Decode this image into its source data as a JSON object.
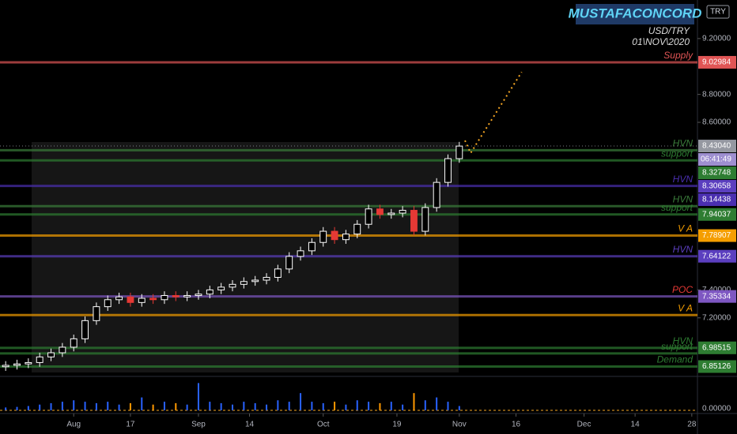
{
  "chart_data": {
    "type": "candlestick",
    "title": "MUSTAFACONCORD",
    "symbol": "USD/TRY",
    "date": "01\\NOV\\2020",
    "currency": "TRY",
    "countdown": "06:41:49",
    "up_color": "#ffffff",
    "down_color": "#e53935",
    "x": [
      0,
      2,
      4,
      6,
      8,
      10,
      12,
      14,
      16,
      18,
      20,
      22,
      24,
      26,
      28,
      30,
      32,
      34,
      36,
      38,
      40,
      42,
      44,
      46,
      48,
      50,
      52,
      54,
      56,
      58,
      60,
      62,
      64,
      66,
      68,
      70,
      72,
      74,
      76,
      78,
      80
    ],
    "open": [
      6.85,
      6.86,
      6.87,
      6.88,
      6.92,
      6.95,
      6.99,
      7.05,
      7.18,
      7.28,
      7.33,
      7.35,
      7.31,
      7.34,
      7.33,
      7.36,
      7.35,
      7.36,
      7.37,
      7.4,
      7.42,
      7.44,
      7.46,
      7.47,
      7.49,
      7.55,
      7.64,
      7.68,
      7.74,
      7.82,
      7.76,
      7.8,
      7.87,
      7.98,
      7.94,
      7.95,
      7.97,
      7.82,
      7.99,
      8.17,
      8.34
    ],
    "high": [
      6.89,
      6.9,
      6.91,
      6.95,
      6.98,
      7.02,
      7.08,
      7.21,
      7.31,
      7.36,
      7.38,
      7.38,
      7.37,
      7.37,
      7.39,
      7.39,
      7.39,
      7.4,
      7.43,
      7.45,
      7.47,
      7.49,
      7.5,
      7.52,
      7.58,
      7.67,
      7.71,
      7.77,
      7.85,
      7.85,
      7.83,
      7.9,
      8.01,
      8.01,
      7.98,
      8.0,
      8.0,
      8.02,
      8.2,
      8.37,
      8.46
    ],
    "low": [
      6.82,
      6.83,
      6.84,
      6.85,
      6.89,
      6.92,
      6.96,
      7.02,
      7.15,
      7.25,
      7.3,
      7.28,
      7.28,
      7.3,
      7.3,
      7.32,
      7.32,
      7.33,
      7.34,
      7.37,
      7.39,
      7.41,
      7.43,
      7.44,
      7.46,
      7.52,
      7.61,
      7.65,
      7.71,
      7.73,
      7.73,
      7.77,
      7.84,
      7.91,
      7.91,
      7.92,
      7.79,
      7.79,
      7.96,
      8.14,
      8.31
    ],
    "close": [
      6.86,
      6.87,
      6.88,
      6.92,
      6.95,
      6.99,
      7.05,
      7.18,
      7.28,
      7.33,
      7.35,
      7.31,
      7.34,
      7.33,
      7.36,
      7.35,
      7.36,
      7.37,
      7.4,
      7.42,
      7.44,
      7.46,
      7.47,
      7.49,
      7.55,
      7.64,
      7.68,
      7.74,
      7.82,
      7.76,
      7.8,
      7.87,
      7.98,
      7.94,
      7.95,
      7.97,
      7.82,
      7.99,
      8.17,
      8.34,
      8.43
    ],
    "volume": [
      0.1,
      0.12,
      0.15,
      0.2,
      0.25,
      0.3,
      0.35,
      0.3,
      0.25,
      0.3,
      0.2,
      0.25,
      0.45,
      0.2,
      0.3,
      0.25,
      0.2,
      0.95,
      0.3,
      0.25,
      0.2,
      0.3,
      0.25,
      0.2,
      0.35,
      0.3,
      0.6,
      0.3,
      0.25,
      0.3,
      0.2,
      0.35,
      0.3,
      0.25,
      0.3,
      0.2,
      0.6,
      0.35,
      0.45,
      0.3,
      0.15
    ],
    "volume_up_color": "#2962ff",
    "volume_down_color": "#ff9800",
    "volume_ylim": [
      0,
      1.1
    ],
    "volume_yticks": [
      {
        "value": 0,
        "label": "0.00000"
      }
    ],
    "xlim": [
      -1,
      122
    ],
    "xticks": [
      {
        "value": 12,
        "label": "Aug"
      },
      {
        "value": 22,
        "label": "17"
      },
      {
        "value": 34,
        "label": "Sep"
      },
      {
        "value": 43,
        "label": "14"
      },
      {
        "value": 56,
        "label": "Oct"
      },
      {
        "value": 69,
        "label": "19"
      },
      {
        "value": 80,
        "label": "Nov"
      },
      {
        "value": 90,
        "label": "16"
      },
      {
        "value": 102,
        "label": "Dec"
      },
      {
        "value": 111,
        "label": "14"
      },
      {
        "value": 121,
        "label": "28"
      }
    ],
    "ylim": [
      6.792,
      9.476
    ],
    "yticks": [
      {
        "value": 7.2,
        "label": "7.20000"
      },
      {
        "value": 7.4,
        "label": "7.40000"
      },
      {
        "value": 8.6,
        "label": "8.60000"
      },
      {
        "value": 8.8,
        "label": "8.80000"
      },
      {
        "value": 9.2,
        "label": "9.20000"
      }
    ],
    "projection": {
      "x": [
        81,
        82,
        91
      ],
      "values": [
        8.47,
        8.38,
        8.96
      ],
      "color": "#f5a623"
    },
    "levels": [
      {
        "text": "Supply",
        "value": 9.02984,
        "label": "9.02984",
        "color": "#e05555"
      },
      {
        "value": 8.4304,
        "label": "8.43040",
        "color": "#9598a1",
        "dotted": true
      },
      {
        "text": "HVN",
        "value": 8.4,
        "color": "#3b7d3b"
      },
      {
        "text": "support",
        "value": 8.32748,
        "label": "8.32748",
        "color": "#2e7d32"
      },
      {
        "value": 8.30658,
        "label": "8.30658",
        "color": "#5b3fbf",
        "line": false
      },
      {
        "text": "HVN",
        "value": 8.14438,
        "label": "8.14438",
        "color": "#4a2fb0"
      },
      {
        "text": "HVN",
        "value": 8.0,
        "color": "#3b7d3b"
      },
      {
        "text": "support",
        "value": 7.94037,
        "label": "7.94037",
        "color": "#2e7d32"
      },
      {
        "text": "V A",
        "value": 7.78907,
        "label": "7.78907",
        "color": "#f59e00"
      },
      {
        "text": "HVN",
        "value": 7.64122,
        "label": "7.64122",
        "color": "#5b3fbf"
      },
      {
        "text": "POC",
        "value": 7.35334,
        "label": "7.35334",
        "color": "#7e57c2",
        "text_color": "#e53935"
      },
      {
        "text": "V A",
        "value": 7.22,
        "color": "#f59e00"
      },
      {
        "text": "HVN",
        "value": 6.98515,
        "label": "6.98515",
        "color": "#2e7d32"
      },
      {
        "text": "support",
        "value": 6.945,
        "color": "#2e7d32"
      },
      {
        "text": "Demand",
        "value": 6.85126,
        "label": "6.85126",
        "color": "#2e7d32"
      }
    ]
  }
}
